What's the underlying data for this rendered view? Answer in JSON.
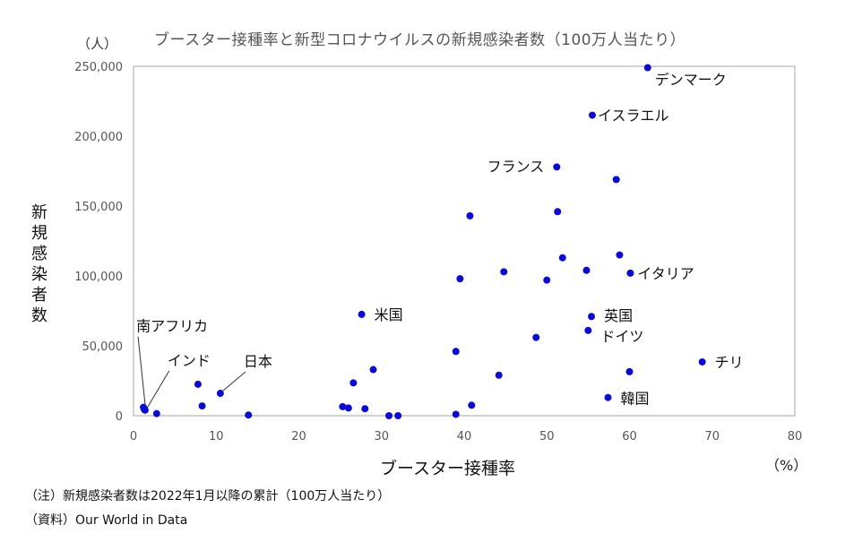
{
  "chart_data": {
    "type": "scatter",
    "title": "ブースター接種率と新型コロナウイルスの新規感染者数（100万人当たり）",
    "y_unit": "（人）",
    "ylabel": "新規感染者数",
    "xlabel": "ブースター接種率",
    "x_unit": "（%）",
    "xlim": [
      0,
      80
    ],
    "ylim": [
      0,
      250000
    ],
    "x_ticks": [
      "0",
      "10",
      "20",
      "30",
      "40",
      "50",
      "60",
      "70",
      "80"
    ],
    "y_ticks": [
      "0",
      "50,000",
      "100,000",
      "150,000",
      "200,000",
      "250,000"
    ],
    "marker_color": "#0a0ad8",
    "grid": false,
    "points": [
      {
        "x": 1.2,
        "y": 6000,
        "label": "南アフリカ"
      },
      {
        "x": 1.3,
        "y": 4500,
        "label": ""
      },
      {
        "x": 1.4,
        "y": 4000,
        "label": "インド"
      },
      {
        "x": 2.8,
        "y": 1500,
        "label": ""
      },
      {
        "x": 7.8,
        "y": 22500,
        "label": ""
      },
      {
        "x": 8.3,
        "y": 7000,
        "label": ""
      },
      {
        "x": 10.5,
        "y": 16000,
        "label": "日本"
      },
      {
        "x": 13.9,
        "y": 500,
        "label": ""
      },
      {
        "x": 25.3,
        "y": 6500,
        "label": ""
      },
      {
        "x": 26.0,
        "y": 5500,
        "label": ""
      },
      {
        "x": 26.6,
        "y": 23500,
        "label": ""
      },
      {
        "x": 27.6,
        "y": 72500,
        "label": "米国"
      },
      {
        "x": 28.0,
        "y": 5000,
        "label": ""
      },
      {
        "x": 29.0,
        "y": 33000,
        "label": ""
      },
      {
        "x": 30.9,
        "y": 0,
        "label": ""
      },
      {
        "x": 32.0,
        "y": 0,
        "label": ""
      },
      {
        "x": 39.0,
        "y": 46000,
        "label": ""
      },
      {
        "x": 39.0,
        "y": 1000,
        "label": ""
      },
      {
        "x": 39.5,
        "y": 98000,
        "label": ""
      },
      {
        "x": 40.7,
        "y": 143000,
        "label": ""
      },
      {
        "x": 40.9,
        "y": 7500,
        "label": ""
      },
      {
        "x": 44.2,
        "y": 29000,
        "label": ""
      },
      {
        "x": 44.8,
        "y": 103000,
        "label": ""
      },
      {
        "x": 48.7,
        "y": 56000,
        "label": ""
      },
      {
        "x": 50.0,
        "y": 97000,
        "label": ""
      },
      {
        "x": 51.2,
        "y": 178000,
        "label": "フランス"
      },
      {
        "x": 51.3,
        "y": 146000,
        "label": ""
      },
      {
        "x": 51.9,
        "y": 113000,
        "label": ""
      },
      {
        "x": 54.8,
        "y": 104000,
        "label": ""
      },
      {
        "x": 55.0,
        "y": 61000,
        "label": "ドイツ"
      },
      {
        "x": 55.4,
        "y": 71000,
        "label": "英国"
      },
      {
        "x": 55.5,
        "y": 215000,
        "label": "イスラエル"
      },
      {
        "x": 57.4,
        "y": 13000,
        "label": "韓国"
      },
      {
        "x": 58.4,
        "y": 169000,
        "label": ""
      },
      {
        "x": 58.8,
        "y": 115000,
        "label": ""
      },
      {
        "x": 60.0,
        "y": 31500,
        "label": ""
      },
      {
        "x": 60.1,
        "y": 102000,
        "label": "イタリア"
      },
      {
        "x": 62.2,
        "y": 249000,
        "label": "デンマーク"
      },
      {
        "x": 68.8,
        "y": 38500,
        "label": "チリ"
      }
    ]
  },
  "notes": [
    "（注）新規感染者数は2022年1月以降の累計（100万人当たり）",
    "（資料）Our World in Data"
  ]
}
